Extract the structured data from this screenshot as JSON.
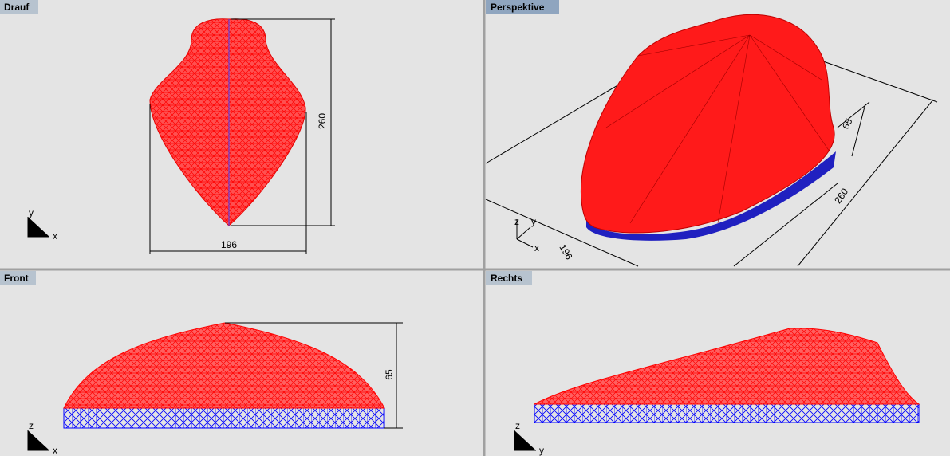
{
  "viewports": [
    {
      "title": "Drauf",
      "dimensions": [
        "260",
        "196"
      ],
      "axes": [
        "y",
        "x"
      ]
    },
    {
      "title": "Perspektive",
      "dimensions": [
        "65",
        "260",
        "196"
      ],
      "axes": [
        "z",
        "y",
        "x"
      ]
    },
    {
      "title": "Front",
      "dimensions": [
        "65"
      ],
      "axes": [
        "z",
        "x"
      ]
    },
    {
      "title": "Rechts",
      "axes": [
        "z",
        "y"
      ]
    }
  ]
}
